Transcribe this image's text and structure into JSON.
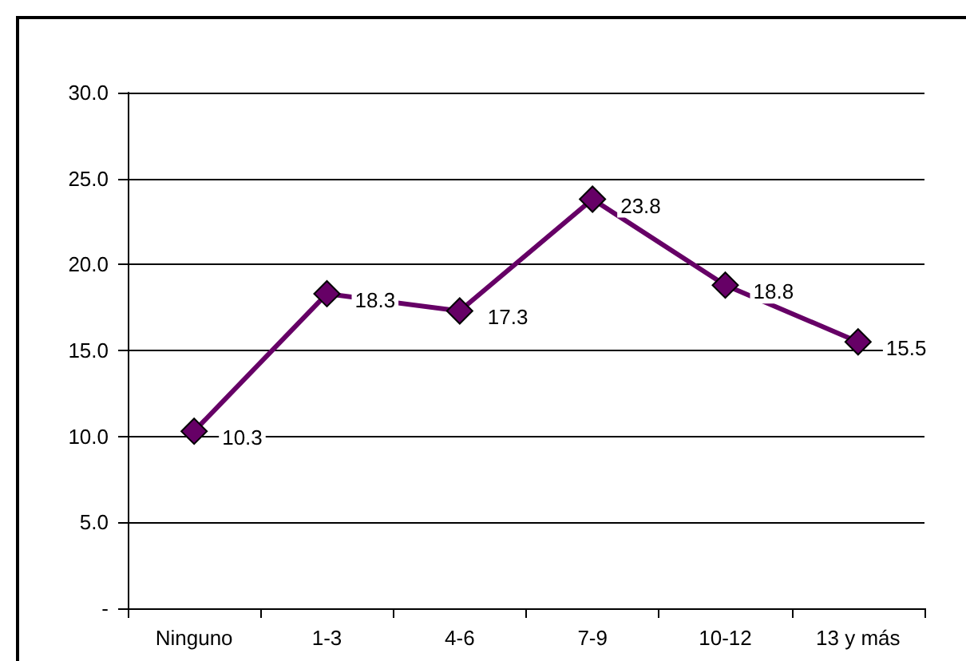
{
  "chart_data": {
    "type": "line",
    "categories": [
      "Ninguno",
      "1-3",
      "4-6",
      "7-9",
      "10-12",
      "13 y más"
    ],
    "series": [
      {
        "color": "#660066",
        "values": [
          10.3,
          18.3,
          17.3,
          23.8,
          18.8,
          15.5
        ]
      }
    ],
    "ylim": [
      0,
      30
    ],
    "yticks": [
      {
        "value": 0,
        "label": "-"
      },
      {
        "value": 5,
        "label": "5.0"
      },
      {
        "value": 10,
        "label": "10.0"
      },
      {
        "value": 15,
        "label": "15.0"
      },
      {
        "value": 20,
        "label": "20.0"
      },
      {
        "value": 25,
        "label": "25.0"
      },
      {
        "value": 30,
        "label": "30.0"
      }
    ],
    "grid": "y",
    "marker": "diamond",
    "line_style": "solid",
    "data_labels": true
  }
}
